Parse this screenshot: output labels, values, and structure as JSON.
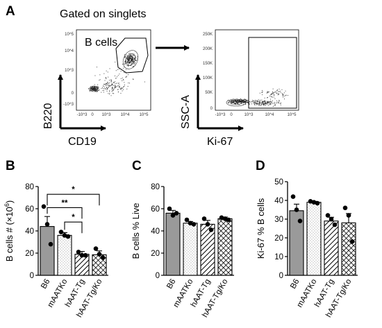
{
  "figure": {
    "panel_A": {
      "letter": "A",
      "gating_title": "Gated on singlets",
      "gate_label": "B cells",
      "plot1": {
        "xlabel": "CD19",
        "ylabel": "B220",
        "yticks": [
          "10^5",
          "10^4",
          "10^3",
          "0",
          "-10^3"
        ],
        "xticks": [
          "-10^3",
          "0",
          "10^3",
          "10^4",
          "10^5"
        ]
      },
      "plot2": {
        "xlabel": "Ki-67",
        "ylabel": "SSC-A",
        "yticks": [
          "250K",
          "200K",
          "150K",
          "100K",
          "50K",
          "0"
        ],
        "xticks": [
          "-10^3",
          "0",
          "10^3",
          "10^4",
          "10^5"
        ]
      }
    }
  },
  "chart_data": [
    {
      "panel": "B",
      "type": "bar",
      "ylabel": "B cells # (×10^6)",
      "ylim": [
        0,
        80
      ],
      "yticks": [
        0,
        20,
        40,
        60,
        80
      ],
      "categories": [
        "B6",
        "mAATKo",
        "hAAT-Tg",
        "hAAT-Tg/Ko"
      ],
      "values": [
        44,
        36,
        19,
        18.5
      ],
      "errors": [
        9,
        2.5,
        2.5,
        3.5
      ],
      "points": [
        [
          62,
          46,
          28
        ],
        [
          39,
          36,
          35
        ],
        [
          21,
          18,
          18
        ],
        [
          24,
          19,
          16
        ]
      ],
      "significance": [
        {
          "from": 0,
          "to": 3,
          "label": "*",
          "y": 73
        },
        {
          "from": 0,
          "to": 2,
          "label": "**",
          "y": 61
        },
        {
          "from": 1,
          "to": 2,
          "label": "*",
          "y": 48
        }
      ]
    },
    {
      "panel": "C",
      "type": "bar",
      "ylabel": "B cells % Live",
      "ylim": [
        0,
        80
      ],
      "yticks": [
        0,
        20,
        40,
        60,
        80
      ],
      "categories": [
        "B6",
        "mAATKo",
        "hAAT-Tg",
        "hAAT-Tg/Ko"
      ],
      "values": [
        56,
        47,
        46,
        51
      ],
      "errors": [
        2.5,
        1.5,
        3.5,
        1.5
      ],
      "points": [
        [
          60,
          54,
          56
        ],
        [
          50,
          47,
          46
        ],
        [
          51,
          46,
          41
        ],
        [
          52,
          51,
          50
        ]
      ]
    },
    {
      "panel": "D",
      "type": "bar",
      "ylabel": "Ki-67 % B cells",
      "ylim": [
        0,
        50
      ],
      "yticks": [
        0,
        10,
        20,
        30,
        40,
        50
      ],
      "categories": [
        "B6",
        "mAATKo",
        "hAAT-Tg",
        "hAAT-Tg/Ko"
      ],
      "values": [
        34.5,
        39,
        29,
        28
      ],
      "errors": [
        3.5,
        0.5,
        2,
        5
      ],
      "points": [
        [
          42,
          35,
          29
        ],
        [
          39.5,
          39,
          38.5
        ],
        [
          32,
          30,
          27
        ],
        [
          36,
          32,
          18
        ]
      ]
    }
  ],
  "style": {
    "bar_fill": "#9a9a9a",
    "point_color": "#000000"
  }
}
